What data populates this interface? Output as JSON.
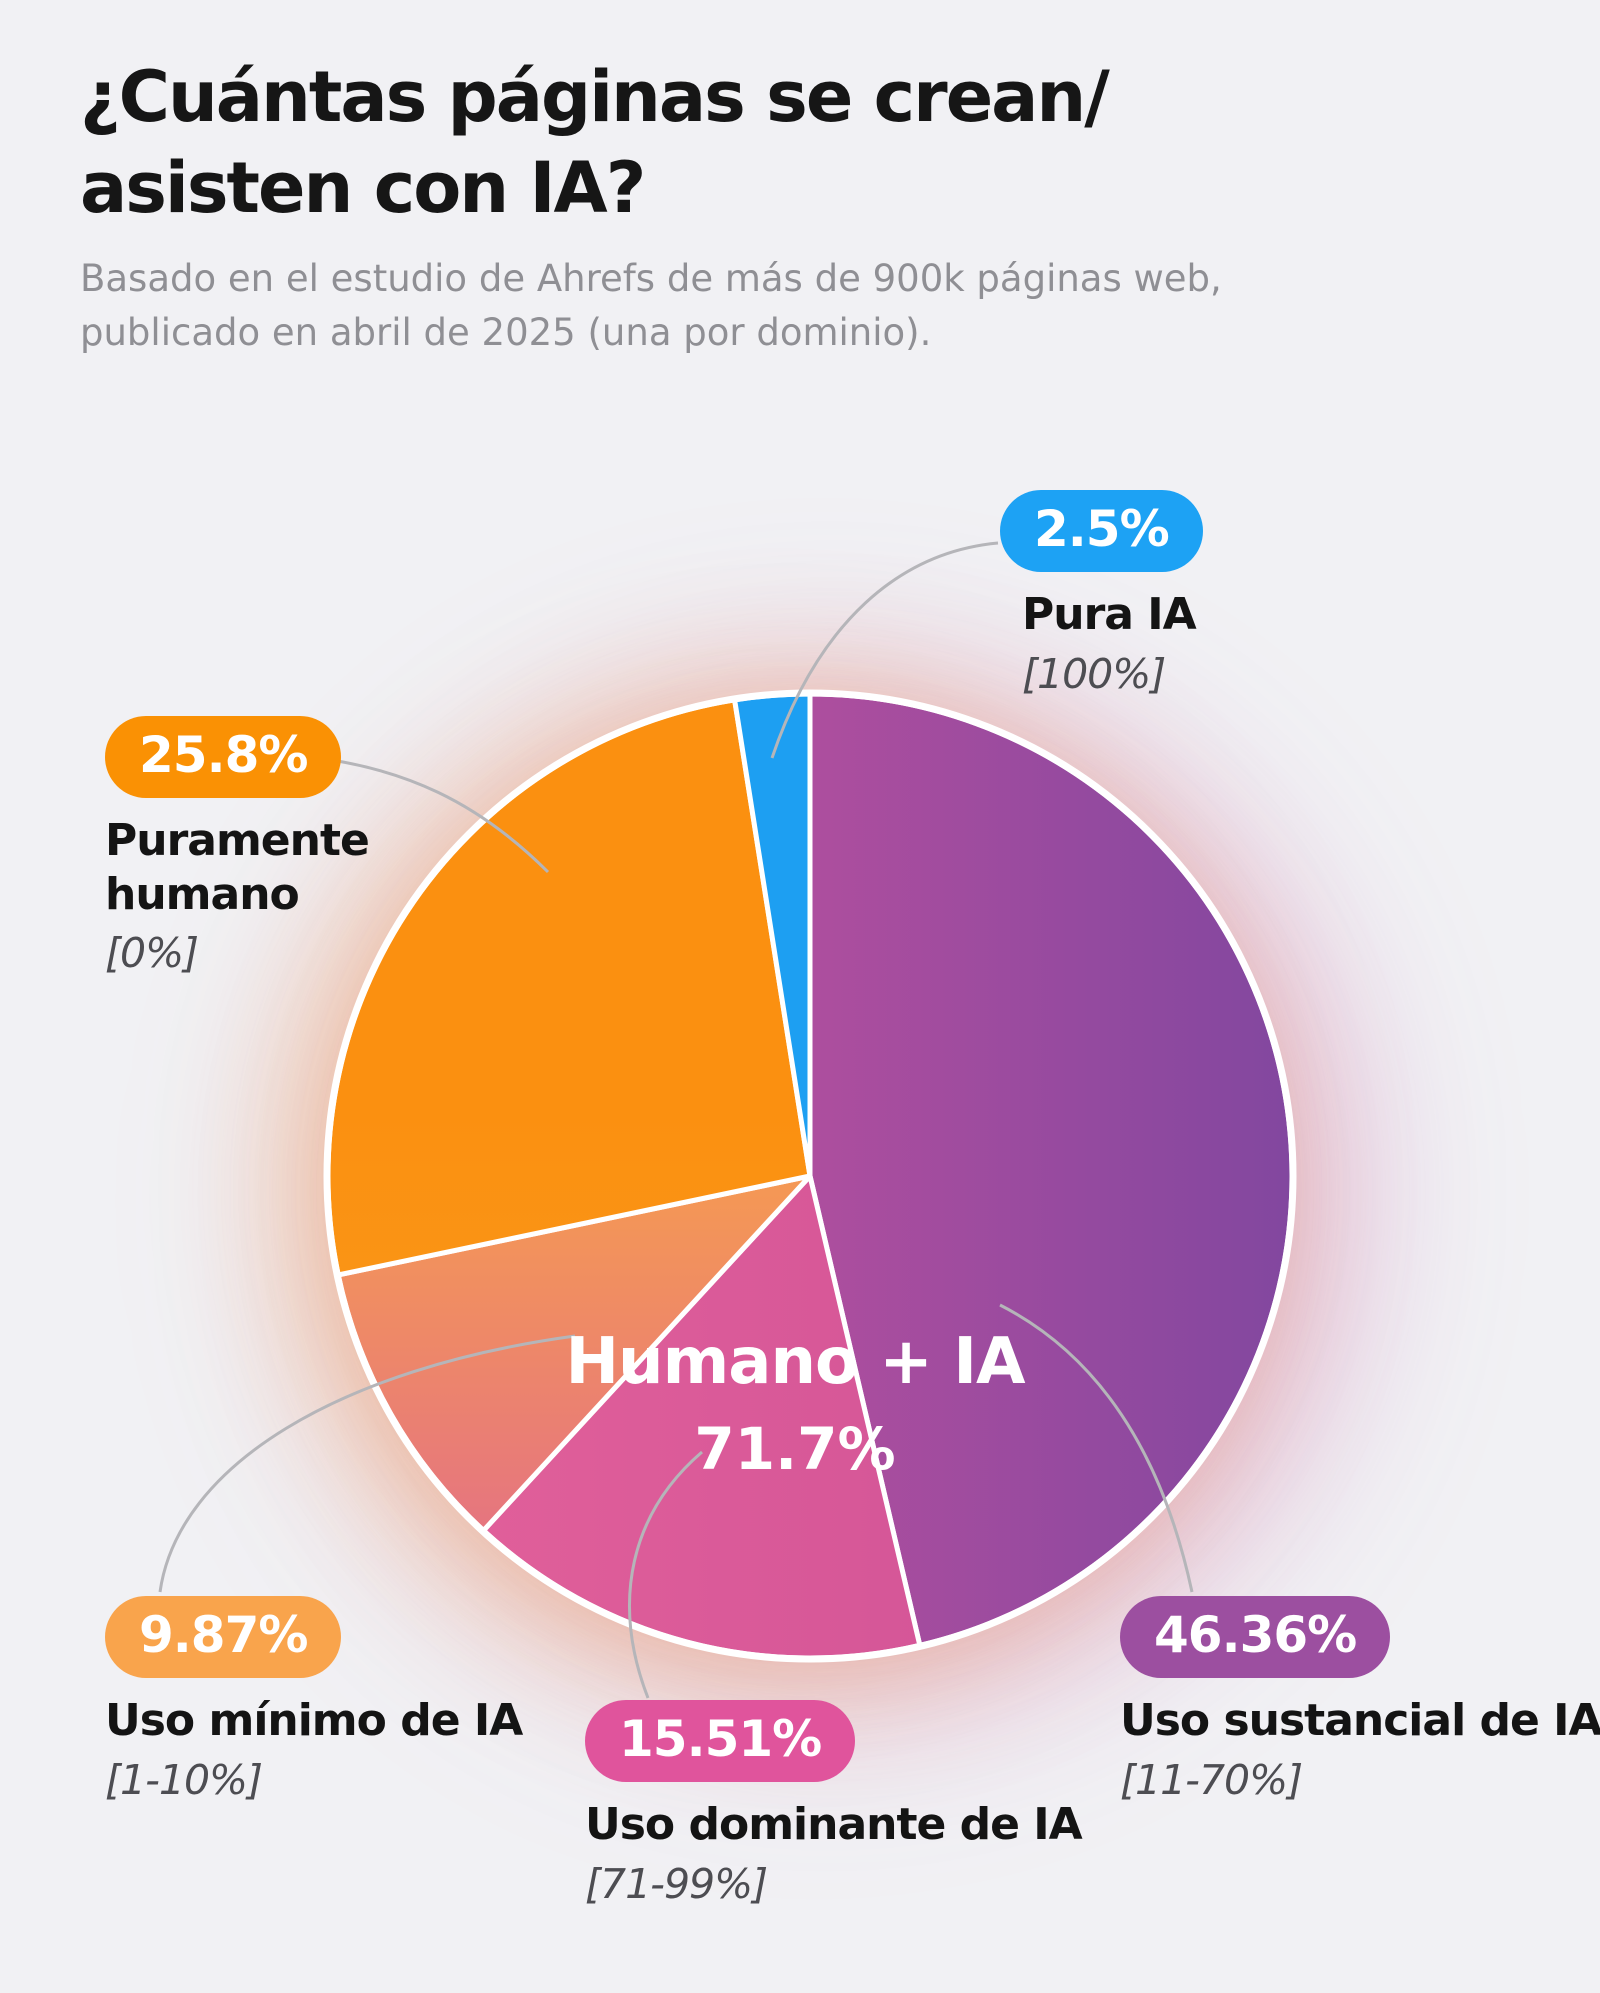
{
  "page": {
    "background": "#f1f1f4"
  },
  "header": {
    "title_lines": [
      "¿Cuántas páginas se crean/",
      "asisten con IA?"
    ],
    "subtitle_lines": [
      "Basado en el estudio de Ahrefs de más de 900k páginas web,",
      "publicado en abril de 2025 (una por dominio)."
    ]
  },
  "center_label": {
    "title": "Humano + IA",
    "value": "71.7%"
  },
  "callouts": [
    {
      "id": "pure-ai",
      "value": "2.5%",
      "label": "Pura IA",
      "range": "[100%]",
      "badge_color": "#1da2f4"
    },
    {
      "id": "purely-human",
      "value": "25.8%",
      "label": "Puramente humano",
      "range": "[0%]",
      "badge_color": "#fa9104"
    },
    {
      "id": "minimal",
      "value": "9.87%",
      "label": "Uso mínimo de IA",
      "range": "[1-10%]",
      "badge_color": "#f9a44c"
    },
    {
      "id": "dominant",
      "value": "15.51%",
      "label": "Uso dominante de IA",
      "range": "[71-99%]",
      "badge_color": "#e0549c"
    },
    {
      "id": "substantial",
      "value": "46.36%",
      "label": "Uso sustancial de IA",
      "range": "[11-70%]",
      "badge_color": "#9c4fa0"
    }
  ],
  "chart_data": {
    "type": "pie",
    "title": "¿Cuántas páginas se crean/asisten con IA?",
    "subtitle": "Basado en el estudio de Ahrefs de más de 900k páginas web, publicado en abril de 2025 (una por dominio).",
    "units": "%",
    "start_angle_deg": 0,
    "direction": "clockwise",
    "legend_position": "callouts-around-pie",
    "group_annotation": {
      "label": "Humano + IA",
      "value": 71.7,
      "members": [
        "Uso sustancial de IA",
        "Uso dominante de IA",
        "Uso mínimo de IA"
      ]
    },
    "slices": [
      {
        "id": "substantial",
        "label": "Uso sustancial de IA",
        "range": "[11-70%]",
        "value": 46.36,
        "color_start": "#d9559e",
        "color_end": "#82479f",
        "gradient_axis": "x"
      },
      {
        "id": "dominant",
        "label": "Uso dominante de IA",
        "range": "[71-99%]",
        "value": 15.51,
        "color_start": "#e4629a",
        "color_end": "#cc4f97",
        "gradient_axis": "x"
      },
      {
        "id": "minimal",
        "label": "Uso mínimo de IA",
        "range": "[1-10%]",
        "value": 9.87,
        "color_start": "#f8a04b",
        "color_end": "#e0688f",
        "gradient_axis": "y"
      },
      {
        "id": "purely-human",
        "label": "Puramente humano",
        "range": "[0%]",
        "value": 25.8,
        "color_start": "#fb9010",
        "color_end": "#f99d21",
        "gradient_axis": "y"
      },
      {
        "id": "pure-ai",
        "label": "Pura IA",
        "range": "[100%]",
        "value": 2.5,
        "color_start": "#1d9ff2",
        "color_end": "#1d9ff2",
        "gradient_axis": "y"
      }
    ]
  }
}
